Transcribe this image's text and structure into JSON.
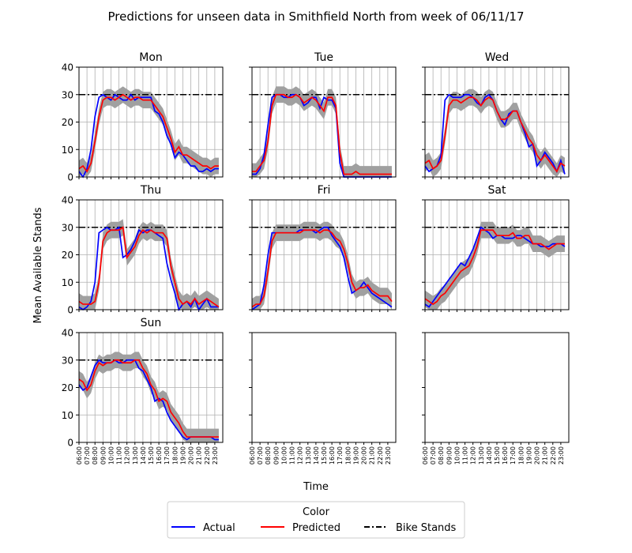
{
  "figure": {
    "title": "Predictions for unseen data in Smithfield North from week of 06/11/17",
    "xlabel": "Time",
    "ylabel": "Mean Available Stands"
  },
  "legend": {
    "title": "Color",
    "entries": [
      {
        "label": "Actual",
        "color": "#0000ff",
        "style": "solid"
      },
      {
        "label": "Predicted",
        "color": "#ff0000",
        "style": "solid"
      },
      {
        "label": "Bike Stands",
        "color": "#000000",
        "style": "dashdot"
      }
    ]
  },
  "colors": {
    "actual": "#0000ff",
    "predicted": "#ff0000",
    "band": "#a0a0a0",
    "grid": "#b0b0b0"
  },
  "chart_data": {
    "type": "line",
    "x_ticks": [
      "06:00",
      "07:00",
      "08:00",
      "09:00",
      "10:00",
      "11:00",
      "12:00",
      "13:00",
      "14:00",
      "15:00",
      "16:00",
      "17:00",
      "18:00",
      "19:00",
      "20:00",
      "21:00",
      "22:00",
      "23:00"
    ],
    "x_range": [
      "06:00",
      "00:00"
    ],
    "x_step": "30min",
    "ylim": [
      0,
      40
    ],
    "y_ticks": [
      0,
      10,
      20,
      30,
      40
    ],
    "bike_stands": 30,
    "band_halfwidth": 3,
    "grid": true,
    "panels": [
      {
        "title": "Mon",
        "actual": [
          2,
          0,
          3,
          10,
          22,
          29,
          30,
          29,
          28,
          30,
          29,
          28,
          28,
          30,
          28,
          29,
          29,
          29,
          29,
          24,
          23,
          20,
          15,
          12,
          7,
          9,
          8,
          6,
          4,
          4,
          2,
          2,
          3,
          2,
          3,
          3
        ],
        "predicted": [
          3,
          4,
          2,
          5,
          13,
          22,
          28,
          29,
          29,
          28,
          29,
          30,
          29,
          28,
          29,
          29,
          28,
          28,
          28,
          26,
          24,
          22,
          18,
          14,
          9,
          11,
          8,
          8,
          7,
          6,
          5,
          4,
          4,
          3,
          4,
          4
        ]
      },
      {
        "title": "Tue",
        "actual": [
          1,
          1,
          3,
          8,
          19,
          29,
          30,
          30,
          29,
          29,
          30,
          30,
          29,
          26,
          27,
          29,
          29,
          25,
          29,
          28,
          28,
          25,
          5,
          0,
          0,
          0,
          0,
          0,
          0,
          0,
          0,
          0,
          0,
          0,
          0,
          0
        ],
        "predicted": [
          2,
          2,
          4,
          6,
          13,
          26,
          30,
          30,
          30,
          29,
          29,
          30,
          29,
          27,
          28,
          29,
          28,
          26,
          24,
          29,
          29,
          26,
          9,
          1,
          1,
          1,
          2,
          1,
          1,
          1,
          1,
          1,
          1,
          1,
          1,
          1
        ]
      },
      {
        "title": "Wed",
        "actual": [
          4,
          2,
          3,
          4,
          8,
          28,
          30,
          29,
          29,
          29,
          30,
          30,
          29,
          27,
          26,
          29,
          30,
          28,
          24,
          21,
          19,
          23,
          24,
          24,
          20,
          16,
          11,
          12,
          4,
          6,
          9,
          7,
          5,
          2,
          6,
          1
        ],
        "predicted": [
          5,
          6,
          3,
          4,
          6,
          15,
          26,
          28,
          28,
          27,
          28,
          29,
          29,
          28,
          26,
          28,
          29,
          28,
          24,
          21,
          21,
          22,
          24,
          24,
          20,
          17,
          14,
          12,
          8,
          6,
          8,
          6,
          4,
          2,
          5,
          4
        ]
      },
      {
        "title": "Thu",
        "actual": [
          1,
          0,
          1,
          3,
          10,
          28,
          29,
          30,
          29,
          29,
          30,
          19,
          20,
          22,
          25,
          29,
          28,
          29,
          29,
          28,
          27,
          26,
          17,
          11,
          6,
          0,
          2,
          3,
          1,
          4,
          0,
          2,
          4,
          1,
          1,
          1
        ],
        "predicted": [
          3,
          2,
          2,
          2,
          3,
          10,
          25,
          28,
          29,
          29,
          29,
          30,
          19,
          21,
          23,
          27,
          29,
          28,
          29,
          28,
          28,
          28,
          26,
          16,
          10,
          4,
          2,
          3,
          2,
          4,
          2,
          3,
          4,
          3,
          2,
          1
        ]
      },
      {
        "title": "Fri",
        "actual": [
          0,
          1,
          2,
          9,
          20,
          28,
          28,
          28,
          28,
          28,
          28,
          28,
          29,
          29,
          29,
          29,
          28,
          29,
          30,
          30,
          27,
          25,
          23,
          19,
          12,
          6,
          7,
          8,
          10,
          8,
          6,
          5,
          4,
          3,
          2,
          1
        ],
        "predicted": [
          1,
          2,
          2,
          5,
          14,
          25,
          28,
          28,
          28,
          28,
          28,
          28,
          28,
          29,
          29,
          29,
          29,
          28,
          29,
          29,
          28,
          26,
          25,
          22,
          17,
          10,
          7,
          8,
          8,
          9,
          7,
          6,
          5,
          5,
          5,
          3
        ]
      },
      {
        "title": "Sat",
        "actual": [
          2,
          1,
          3,
          5,
          7,
          9,
          11,
          13,
          15,
          17,
          16,
          19,
          22,
          26,
          30,
          29,
          28,
          26,
          27,
          27,
          26,
          26,
          26,
          27,
          27,
          26,
          25,
          24,
          24,
          23,
          23,
          23,
          24,
          24,
          24,
          23
        ],
        "predicted": [
          4,
          3,
          2,
          3,
          5,
          6,
          8,
          10,
          12,
          14,
          15,
          16,
          19,
          23,
          29,
          29,
          29,
          29,
          27,
          27,
          27,
          27,
          28,
          26,
          26,
          27,
          27,
          24,
          24,
          24,
          23,
          22,
          23,
          24,
          24,
          24
        ]
      },
      {
        "title": "Sun",
        "actual": [
          21,
          19,
          20,
          24,
          28,
          30,
          29,
          29,
          29,
          30,
          29,
          29,
          30,
          30,
          30,
          27,
          26,
          23,
          20,
          15,
          16,
          15,
          11,
          8,
          6,
          4,
          2,
          1,
          2,
          2,
          2,
          2,
          2,
          2,
          1,
          1
        ],
        "predicted": [
          23,
          22,
          19,
          21,
          26,
          29,
          28,
          29,
          29,
          30,
          30,
          29,
          29,
          29,
          30,
          30,
          27,
          25,
          21,
          19,
          15,
          16,
          15,
          11,
          9,
          7,
          4,
          2,
          2,
          2,
          2,
          2,
          2,
          2,
          2,
          2
        ]
      },
      {
        "title": "",
        "actual": [],
        "predicted": []
      },
      {
        "title": "",
        "actual": [],
        "predicted": []
      }
    ]
  }
}
